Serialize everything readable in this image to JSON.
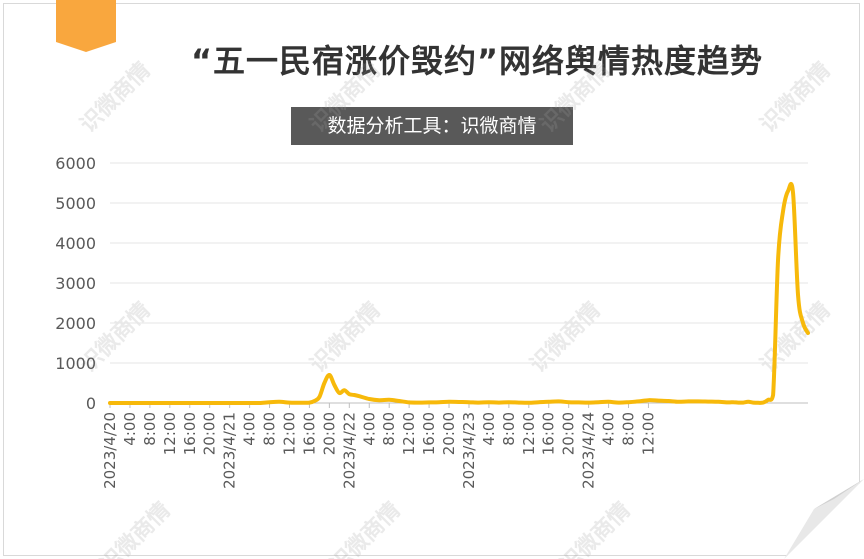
{
  "title": "“五一民宿涨价毁约”网络舆情热度趋势",
  "subtitle": "数据分析工具：识微商情",
  "watermark": "识微商情",
  "colors": {
    "line": "#f7b90a",
    "bookmark": "#f9a73e",
    "subtitle_bg": "#595959",
    "grid": "#e6e6e6"
  },
  "chart_data": {
    "type": "line",
    "title": "“五一民宿涨价毁约”网络舆情热度趋势",
    "xlabel": "",
    "ylabel": "",
    "ylim": [
      0,
      6000
    ],
    "yticks": [
      "0",
      "1000",
      "2000",
      "3000",
      "4000",
      "5000",
      "6000"
    ],
    "xticks": [
      "2023/4/20",
      "4:00",
      "8:00",
      "12:00",
      "16:00",
      "20:00",
      "2023/4/21",
      "4:00",
      "8:00",
      "12:00",
      "16:00",
      "20:00",
      "2023/4/22",
      "4:00",
      "8:00",
      "12:00",
      "16:00",
      "20:00",
      "2023/4/23",
      "4:00",
      "8:00",
      "12:00",
      "16:00",
      "20:00",
      "2023/4/24",
      "4:00",
      "8:00",
      "12:00"
    ],
    "grid": true,
    "legend": "none",
    "series": [
      {
        "x_hours": [
          0,
          2,
          4,
          6,
          8,
          10,
          12,
          14,
          16,
          18,
          20,
          22,
          24,
          26,
          28,
          30,
          32,
          34,
          36,
          38,
          40,
          41,
          42,
          43,
          44,
          45,
          46,
          47,
          48,
          49,
          50,
          52,
          54,
          56,
          58,
          60,
          62,
          64,
          66,
          68,
          70,
          72,
          74,
          76,
          78,
          80,
          82,
          84,
          86,
          88,
          90,
          92,
          94,
          96,
          98,
          100,
          102,
          104,
          106,
          108,
          110,
          112,
          114,
          116,
          118,
          120,
          122,
          124,
          125,
          126,
          127,
          128,
          129,
          130,
          131,
          132,
          133,
          134,
          135,
          136,
          137,
          138,
          139,
          140
        ],
        "values": [
          0,
          0,
          0,
          0,
          0,
          0,
          0,
          0,
          0,
          0,
          0,
          0,
          0,
          0,
          0,
          0,
          20,
          30,
          10,
          5,
          10,
          50,
          150,
          500,
          700,
          450,
          250,
          320,
          220,
          200,
          170,
          100,
          70,
          80,
          50,
          15,
          10,
          15,
          20,
          30,
          25,
          20,
          10,
          20,
          10,
          20,
          10,
          5,
          20,
          30,
          40,
          20,
          15,
          10,
          20,
          30,
          10,
          20,
          40,
          70,
          60,
          50,
          30,
          40,
          40,
          35,
          30,
          15,
          20,
          10,
          10,
          30,
          10,
          5,
          10,
          80,
          200,
          3600,
          4800,
          5300,
          5250,
          2700,
          2000,
          1750
        ]
      }
    ]
  }
}
